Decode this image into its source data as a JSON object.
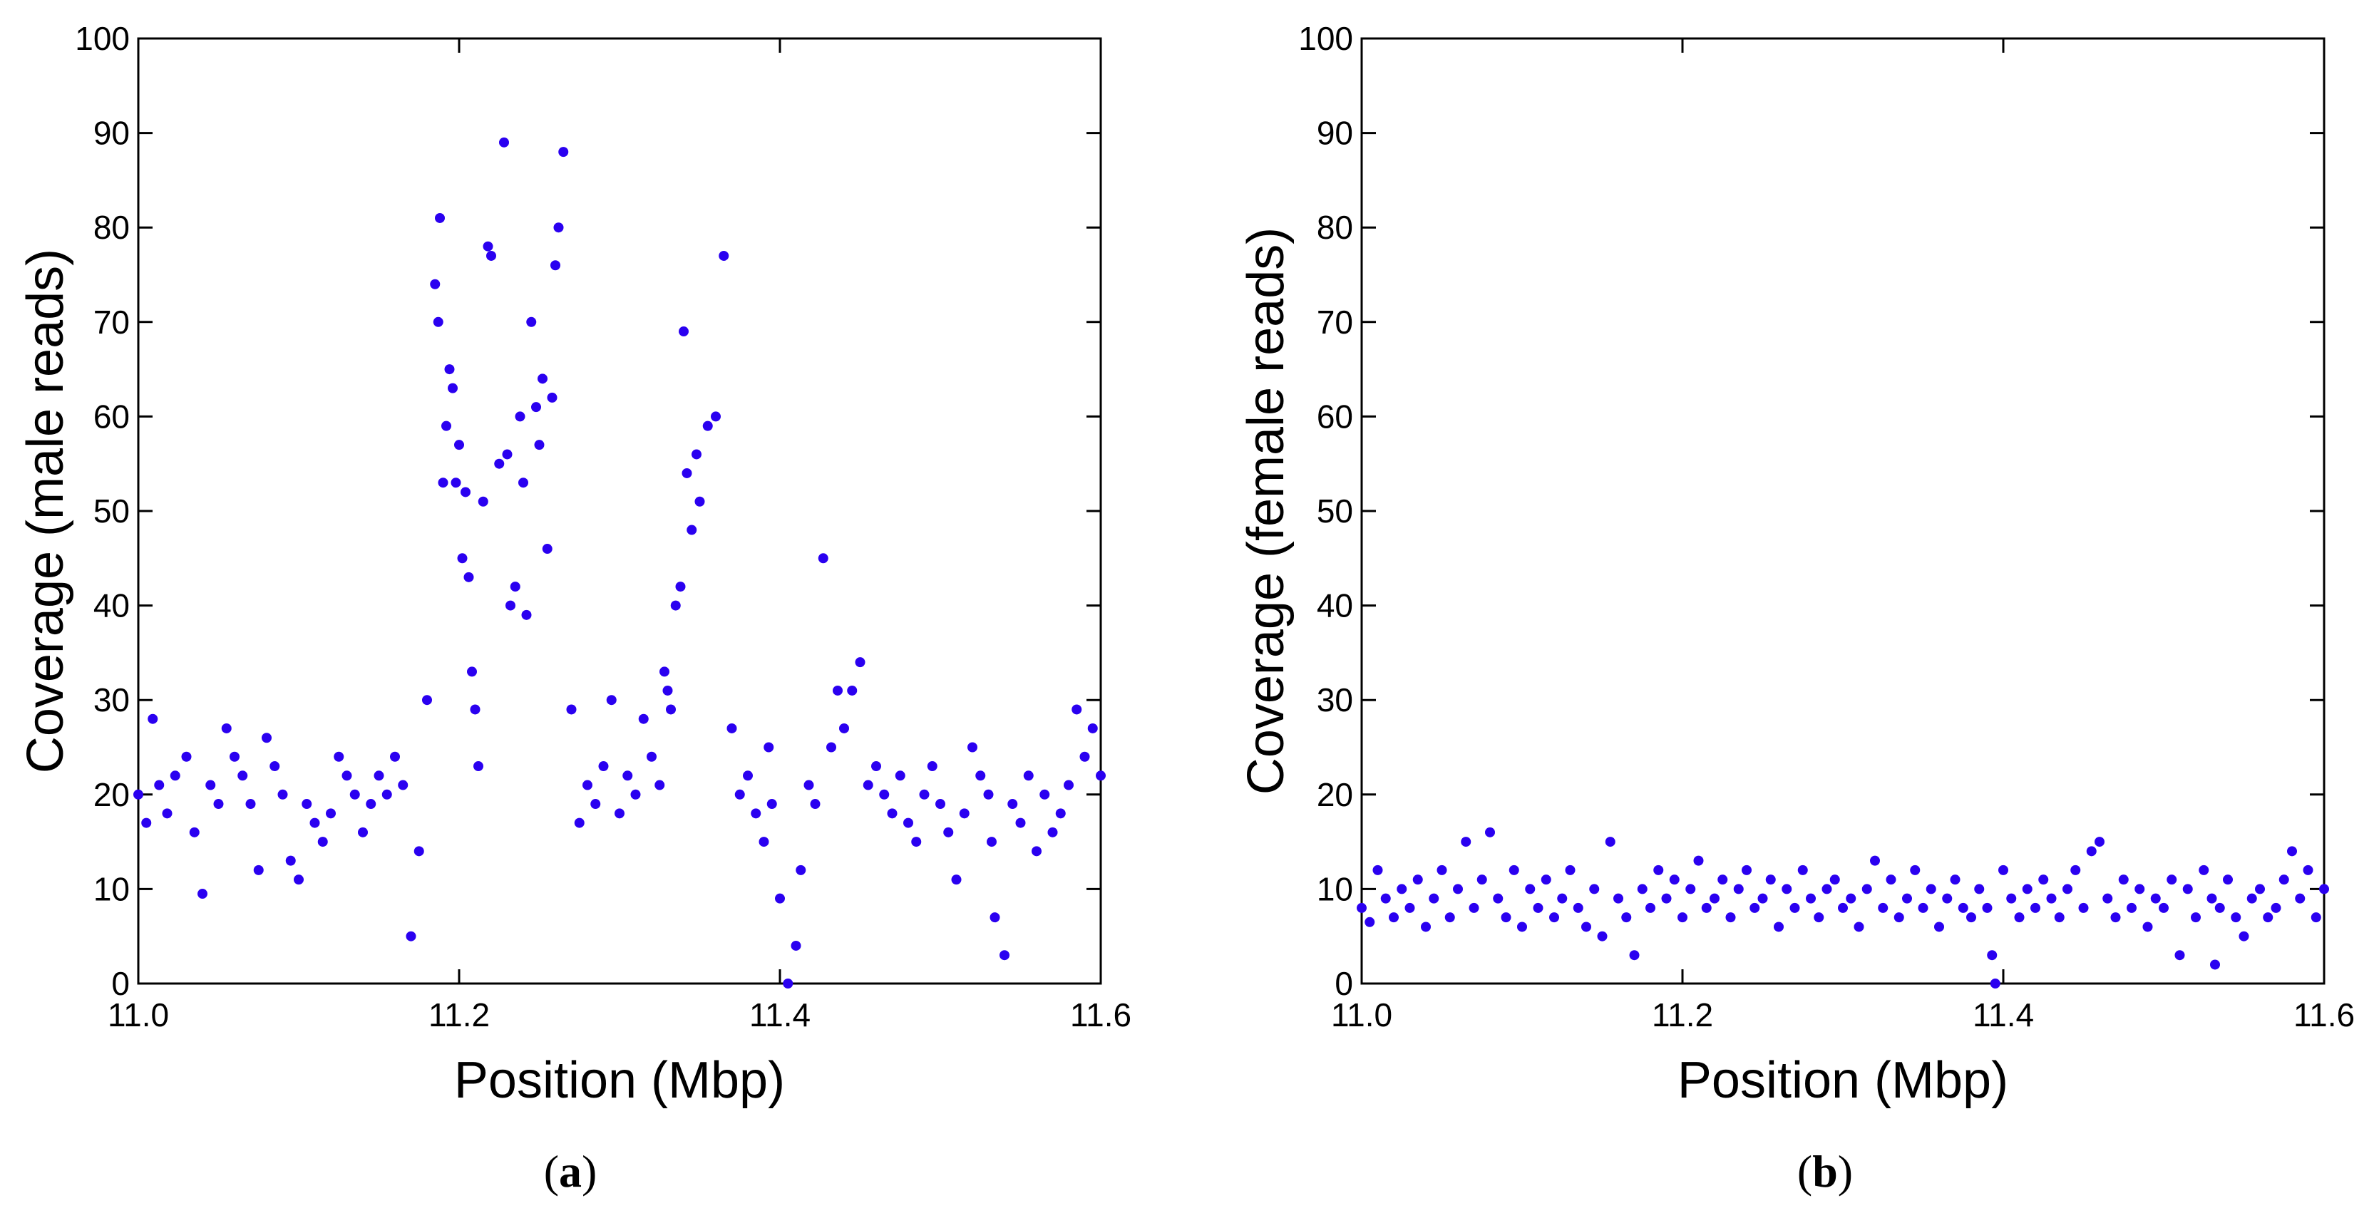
{
  "chart_data": [
    {
      "type": "scatter",
      "panel": "(a)",
      "panel_open": "(",
      "panel_letter": "a",
      "panel_close": ")",
      "xlabel": "Position (Mbp)",
      "ylabel": "Coverage (male reads)",
      "xlim": [
        11.0,
        11.6
      ],
      "ylim": [
        0,
        100
      ],
      "xticks": [
        "11.0",
        "11.2",
        "11.4",
        "11.6"
      ],
      "yticks": [
        "0",
        "10",
        "20",
        "30",
        "40",
        "50",
        "60",
        "70",
        "80",
        "90",
        "100"
      ],
      "color": "#2a00f0",
      "series": [
        {
          "name": "male reads",
          "x": [
            11.0,
            11.005,
            11.009,
            11.013,
            11.018,
            11.023,
            11.03,
            11.035,
            11.04,
            11.045,
            11.05,
            11.055,
            11.06,
            11.065,
            11.07,
            11.075,
            11.08,
            11.085,
            11.09,
            11.095,
            11.1,
            11.105,
            11.11,
            11.115,
            11.12,
            11.125,
            11.13,
            11.135,
            11.14,
            11.145,
            11.15,
            11.155,
            11.16,
            11.165,
            11.17,
            11.175,
            11.18,
            11.185,
            11.187,
            11.188,
            11.19,
            11.192,
            11.194,
            11.196,
            11.198,
            11.2,
            11.202,
            11.204,
            11.206,
            11.208,
            11.21,
            11.212,
            11.215,
            11.218,
            11.22,
            11.225,
            11.228,
            11.23,
            11.232,
            11.235,
            11.238,
            11.24,
            11.242,
            11.245,
            11.248,
            11.25,
            11.252,
            11.255,
            11.258,
            11.26,
            11.262,
            11.265,
            11.27,
            11.275,
            11.28,
            11.285,
            11.29,
            11.295,
            11.3,
            11.305,
            11.31,
            11.315,
            11.32,
            11.325,
            11.328,
            11.33,
            11.332,
            11.335,
            11.338,
            11.34,
            11.342,
            11.345,
            11.348,
            11.35,
            11.355,
            11.36,
            11.365,
            11.37,
            11.375,
            11.38,
            11.385,
            11.39,
            11.393,
            11.395,
            11.4,
            11.405,
            11.41,
            11.413,
            11.418,
            11.422,
            11.427,
            11.432,
            11.436,
            11.44,
            11.445,
            11.45,
            11.455,
            11.46,
            11.465,
            11.47,
            11.475,
            11.48,
            11.485,
            11.49,
            11.495,
            11.5,
            11.505,
            11.51,
            11.515,
            11.52,
            11.525,
            11.53,
            11.532,
            11.534,
            11.54,
            11.545,
            11.55,
            11.555,
            11.56,
            11.565,
            11.57,
            11.575,
            11.58,
            11.585,
            11.59,
            11.595,
            11.6
          ],
          "y": [
            20,
            17,
            28,
            21,
            18,
            22,
            24,
            16,
            9.5,
            21,
            19,
            27,
            24,
            22,
            19,
            12,
            26,
            23,
            20,
            13,
            11,
            19,
            17,
            15,
            18,
            24,
            22,
            20,
            16,
            19,
            22,
            20,
            24,
            21,
            5,
            14,
            30,
            74,
            70,
            81,
            53,
            59,
            65,
            63,
            53,
            57,
            45,
            52,
            43,
            33,
            29,
            23,
            51,
            78,
            77,
            55,
            89,
            56,
            40,
            42,
            60,
            53,
            39,
            70,
            61,
            57,
            64,
            46,
            62,
            76,
            80,
            88,
            29,
            17,
            21,
            19,
            23,
            30,
            18,
            22,
            20,
            28,
            24,
            21,
            33,
            31,
            29,
            40,
            42,
            69,
            54,
            48,
            56,
            51,
            59,
            60,
            77,
            27,
            20,
            22,
            18,
            15,
            25,
            19,
            9,
            0,
            4,
            12,
            21,
            19,
            45,
            25,
            31,
            27,
            31,
            34,
            21,
            23,
            20,
            18,
            22,
            17,
            15,
            20,
            23,
            19,
            16,
            11,
            18,
            25,
            22,
            20,
            15,
            7,
            3,
            19,
            17,
            22,
            14,
            20,
            16,
            18,
            21,
            29,
            24,
            27,
            22
          ]
        }
      ]
    },
    {
      "type": "scatter",
      "panel": "(b)",
      "panel_open": "(",
      "panel_letter": "b",
      "panel_close": ")",
      "xlabel": "Position (Mbp)",
      "ylabel": "Coverage (female reads)",
      "xlim": [
        11.0,
        11.6
      ],
      "ylim": [
        0,
        100
      ],
      "xticks": [
        "11.0",
        "11.2",
        "11.4",
        "11.6"
      ],
      "yticks": [
        "0",
        "10",
        "20",
        "30",
        "40",
        "50",
        "60",
        "70",
        "80",
        "90",
        "100"
      ],
      "color": "#2a00f0",
      "series": [
        {
          "name": "female reads",
          "x": [
            11.0,
            11.005,
            11.01,
            11.015,
            11.02,
            11.025,
            11.03,
            11.035,
            11.04,
            11.045,
            11.05,
            11.055,
            11.06,
            11.065,
            11.07,
            11.075,
            11.08,
            11.085,
            11.09,
            11.095,
            11.1,
            11.105,
            11.11,
            11.115,
            11.12,
            11.125,
            11.13,
            11.135,
            11.14,
            11.145,
            11.15,
            11.155,
            11.16,
            11.165,
            11.17,
            11.175,
            11.18,
            11.185,
            11.19,
            11.195,
            11.2,
            11.205,
            11.21,
            11.215,
            11.22,
            11.225,
            11.23,
            11.235,
            11.24,
            11.245,
            11.25,
            11.255,
            11.26,
            11.265,
            11.27,
            11.275,
            11.28,
            11.285,
            11.29,
            11.295,
            11.3,
            11.305,
            11.31,
            11.315,
            11.32,
            11.325,
            11.33,
            11.335,
            11.34,
            11.345,
            11.35,
            11.355,
            11.36,
            11.365,
            11.37,
            11.375,
            11.38,
            11.385,
            11.39,
            11.393,
            11.395,
            11.4,
            11.405,
            11.41,
            11.415,
            11.42,
            11.425,
            11.43,
            11.435,
            11.44,
            11.445,
            11.45,
            11.455,
            11.46,
            11.465,
            11.47,
            11.475,
            11.48,
            11.485,
            11.49,
            11.495,
            11.5,
            11.505,
            11.51,
            11.515,
            11.52,
            11.525,
            11.53,
            11.532,
            11.535,
            11.54,
            11.545,
            11.55,
            11.555,
            11.56,
            11.565,
            11.57,
            11.575,
            11.58,
            11.585,
            11.59,
            11.595,
            11.6
          ],
          "y": [
            8,
            6.5,
            12,
            9,
            7,
            10,
            8,
            11,
            6,
            9,
            12,
            7,
            10,
            15,
            8,
            11,
            16,
            9,
            7,
            12,
            6,
            10,
            8,
            11,
            7,
            9,
            12,
            8,
            6,
            10,
            5,
            15,
            9,
            7,
            3,
            10,
            8,
            12,
            9,
            11,
            7,
            10,
            13,
            8,
            9,
            11,
            7,
            10,
            12,
            8,
            9,
            11,
            6,
            10,
            8,
            12,
            9,
            7,
            10,
            11,
            8,
            9,
            6,
            10,
            13,
            8,
            11,
            7,
            9,
            12,
            8,
            10,
            6,
            9,
            11,
            8,
            7,
            10,
            8,
            3,
            0,
            12,
            9,
            7,
            10,
            8,
            11,
            9,
            7,
            10,
            12,
            8,
            14,
            15,
            9,
            7,
            11,
            8,
            10,
            6,
            9,
            8,
            11,
            3,
            10,
            7,
            12,
            9,
            2,
            8,
            11,
            7,
            5,
            9,
            10,
            7,
            8,
            11,
            14,
            9,
            12,
            7,
            10
          ]
        }
      ]
    }
  ]
}
